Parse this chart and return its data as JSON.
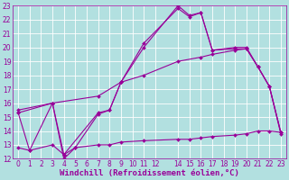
{
  "xlabel": "Windchill (Refroidissement éolien,°C)",
  "bg_color": "#b2e0e0",
  "grid_color": "#ffffff",
  "line_color": "#990099",
  "xlim": [
    -0.5,
    23.5
  ],
  "ylim": [
    12,
    23
  ],
  "xticks": [
    0,
    1,
    2,
    3,
    4,
    5,
    6,
    7,
    8,
    9,
    10,
    11,
    12,
    14,
    15,
    16,
    17,
    18,
    19,
    20,
    21,
    22,
    23
  ],
  "yticks": [
    12,
    13,
    14,
    15,
    16,
    17,
    18,
    19,
    20,
    21,
    22,
    23
  ],
  "line1_x": [
    0,
    1,
    3,
    4,
    5,
    7,
    8,
    9,
    11,
    14,
    15,
    16,
    17,
    19,
    20,
    21,
    22,
    23
  ],
  "line1_y": [
    15.3,
    12.6,
    16.0,
    12.0,
    12.8,
    15.2,
    15.5,
    17.5,
    20.0,
    23.0,
    22.3,
    22.5,
    19.8,
    19.9,
    19.9,
    18.6,
    17.2,
    13.9
  ],
  "line2_x": [
    0,
    3,
    4,
    7,
    8,
    9,
    11,
    14,
    15,
    16,
    17,
    19,
    20,
    21,
    22,
    23
  ],
  "line2_y": [
    15.3,
    16.0,
    12.3,
    15.3,
    15.5,
    17.5,
    20.3,
    22.8,
    22.2,
    22.5,
    19.8,
    20.0,
    20.0,
    18.6,
    17.2,
    13.9
  ],
  "line3_x": [
    0,
    3,
    7,
    9,
    11,
    14,
    16,
    17,
    19,
    20,
    21,
    22,
    23
  ],
  "line3_y": [
    15.5,
    16.0,
    16.5,
    17.5,
    18.0,
    19.0,
    19.3,
    19.5,
    19.8,
    19.9,
    18.6,
    17.2,
    13.8
  ],
  "line4_x": [
    0,
    1,
    3,
    4,
    5,
    7,
    8,
    9,
    11,
    14,
    15,
    16,
    17,
    19,
    20,
    21,
    22,
    23
  ],
  "line4_y": [
    12.8,
    12.6,
    13.0,
    12.3,
    12.8,
    13.0,
    13.0,
    13.2,
    13.3,
    13.4,
    13.4,
    13.5,
    13.6,
    13.7,
    13.8,
    14.0,
    14.0,
    13.9
  ],
  "marker_size": 2,
  "line_width": 0.8,
  "xlabel_fontsize": 6.5,
  "tick_fontsize": 5.5
}
